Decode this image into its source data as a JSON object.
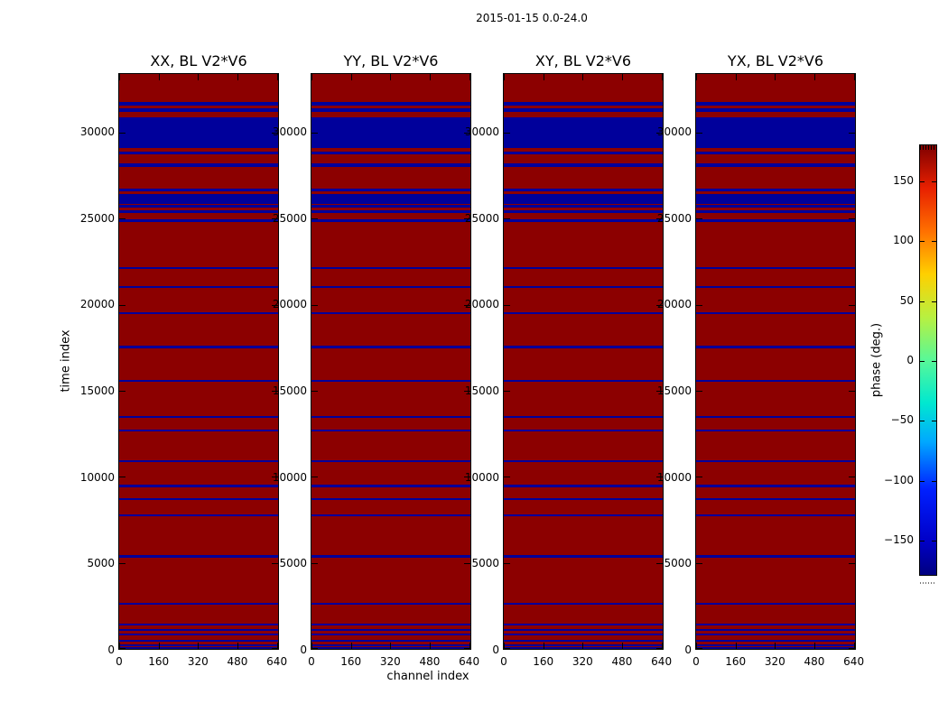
{
  "figure": {
    "suptitle": "2015-01-15 0.0-24.0",
    "xlabel": "channel index",
    "ylabel": "time index",
    "colorbar_label": "phase (deg.)"
  },
  "chart_data": {
    "type": "heatmap",
    "suptitle": "2015-01-15 0.0-24.0",
    "subplot_titles": [
      "XX, BL V2*V6",
      "YY, BL V2*V6",
      "XY, BL V2*V6",
      "YX, BL V2*V6"
    ],
    "xlabel": "channel index",
    "ylabel": "time index",
    "x_ticks": [
      0,
      160,
      320,
      480,
      640
    ],
    "x_tick_labels": [
      "0",
      "160",
      "320",
      "480",
      "640"
    ],
    "x_range": [
      0,
      645
    ],
    "y_ticks": [
      0,
      5000,
      10000,
      15000,
      20000,
      25000,
      30000
    ],
    "y_tick_labels": [
      "0",
      "5000",
      "10000",
      "15000",
      "20000",
      "25000",
      "30000"
    ],
    "y_range": [
      0,
      33400
    ],
    "colormap": "jet",
    "colorbar": {
      "label": "phase (deg.)",
      "tick_values": [
        150,
        100,
        50,
        0,
        -50,
        -100,
        -150
      ],
      "tick_labels": [
        "150",
        "100",
        "50",
        "0",
        "−50",
        "−100",
        "−150"
      ],
      "range": [
        -180,
        180
      ]
    },
    "base_phase_deg": 170,
    "stripe_phase_deg": -170,
    "base_phase_color": "#8c0000",
    "stripe_phase_color": "#00009b",
    "note": "All four subplots share an identical pattern: uniform ~+170 deg (dark red) with flagged time rows at ~-170 deg (dark blue) spanning all channels.",
    "blue_time_ranges": [
      [
        0,
        90
      ],
      [
        180,
        280
      ],
      [
        400,
        500
      ],
      [
        800,
        900
      ],
      [
        1050,
        1150
      ],
      [
        1350,
        1460
      ],
      [
        2550,
        2670
      ],
      [
        5305,
        5430
      ],
      [
        7700,
        7820
      ],
      [
        8625,
        8745
      ],
      [
        9410,
        9530
      ],
      [
        10840,
        10960
      ],
      [
        12635,
        12760
      ],
      [
        13420,
        13545
      ],
      [
        15515,
        15640
      ],
      [
        17470,
        17595
      ],
      [
        19440,
        19565
      ],
      [
        20960,
        21085
      ],
      [
        22060,
        22200
      ],
      [
        24820,
        24975
      ],
      [
        25340,
        25485
      ],
      [
        25620,
        25780
      ],
      [
        25865,
        26405
      ],
      [
        26580,
        26715
      ],
      [
        28025,
        28205
      ],
      [
        28730,
        28900
      ],
      [
        29100,
        30900
      ],
      [
        31220,
        31400
      ],
      [
        31570,
        31790
      ]
    ]
  }
}
